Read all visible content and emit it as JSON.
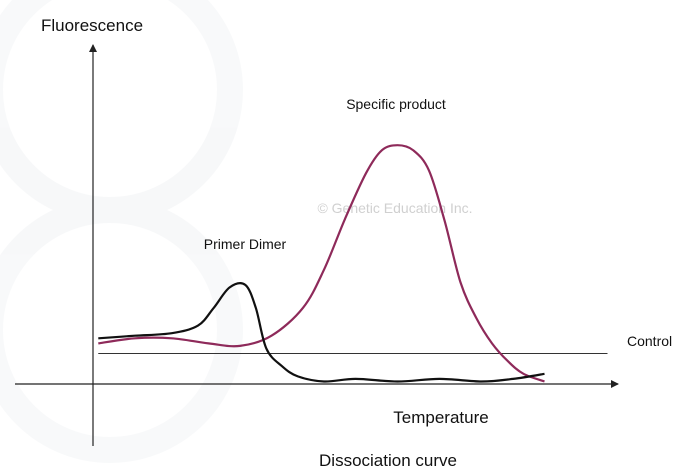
{
  "chart_data": {
    "type": "line",
    "title": "Dissociation curve",
    "xlabel": "Temperature",
    "ylabel": "Fluorescence",
    "watermark": "© Genetic Education Inc.",
    "xlim": [
      0,
      100
    ],
    "ylim": [
      0,
      100
    ],
    "grid": false,
    "axis_color": "#222222",
    "series": [
      {
        "name": "Specific product",
        "color": "#8e2a5a",
        "x": [
          1,
          8,
          15,
          22,
          28,
          34,
          40,
          44,
          48,
          52,
          55,
          58,
          61,
          64,
          67,
          70,
          73,
          76,
          79,
          82,
          86
        ],
        "y": [
          16,
          18,
          18,
          16,
          15,
          19,
          30,
          45,
          65,
          83,
          92,
          94,
          92,
          84,
          64,
          40,
          26,
          16,
          9,
          4,
          1
        ]
      },
      {
        "name": "Primer Dimer",
        "color": "#111111",
        "x": [
          1,
          8,
          15,
          20,
          23,
          26,
          29,
          31,
          33,
          36,
          39,
          44,
          50,
          58,
          66,
          74,
          80,
          86
        ],
        "y": [
          18,
          19,
          20,
          23,
          30,
          38,
          39,
          30,
          14,
          7,
          3,
          1,
          2,
          1,
          2,
          1,
          2,
          4
        ]
      },
      {
        "name": "Control",
        "color": "#333333",
        "x": [
          1,
          98
        ],
        "y": [
          12,
          12
        ]
      }
    ]
  }
}
